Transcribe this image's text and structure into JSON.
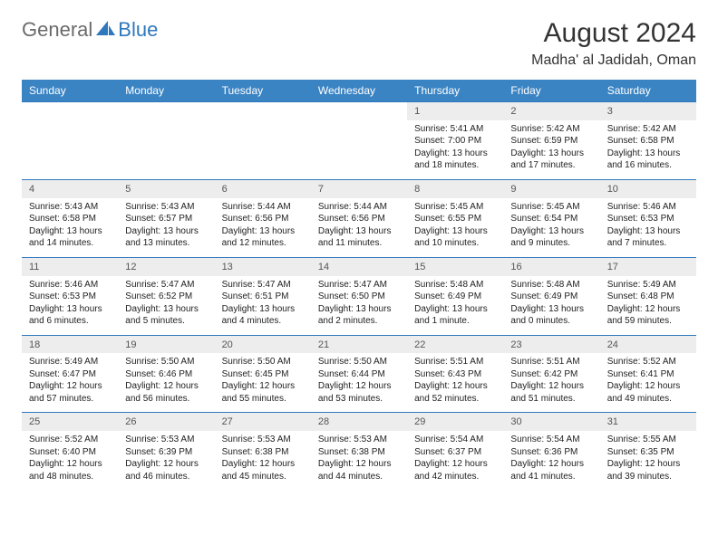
{
  "logo": {
    "part1": "General",
    "part2": "Blue"
  },
  "title": "August 2024",
  "location": "Madha' al Jadidah, Oman",
  "colors": {
    "header_bg": "#3b84c4",
    "header_text": "#ffffff",
    "daynum_bg": "#ededed",
    "row_border": "#2f78bd",
    "logo_gray": "#6b6b6b",
    "logo_blue": "#2f78bd"
  },
  "weekdays": [
    "Sunday",
    "Monday",
    "Tuesday",
    "Wednesday",
    "Thursday",
    "Friday",
    "Saturday"
  ],
  "weeks": [
    [
      null,
      null,
      null,
      null,
      {
        "n": "1",
        "sr": "Sunrise: 5:41 AM",
        "ss": "Sunset: 7:00 PM",
        "d1": "Daylight: 13 hours",
        "d2": "and 18 minutes."
      },
      {
        "n": "2",
        "sr": "Sunrise: 5:42 AM",
        "ss": "Sunset: 6:59 PM",
        "d1": "Daylight: 13 hours",
        "d2": "and 17 minutes."
      },
      {
        "n": "3",
        "sr": "Sunrise: 5:42 AM",
        "ss": "Sunset: 6:58 PM",
        "d1": "Daylight: 13 hours",
        "d2": "and 16 minutes."
      }
    ],
    [
      {
        "n": "4",
        "sr": "Sunrise: 5:43 AM",
        "ss": "Sunset: 6:58 PM",
        "d1": "Daylight: 13 hours",
        "d2": "and 14 minutes."
      },
      {
        "n": "5",
        "sr": "Sunrise: 5:43 AM",
        "ss": "Sunset: 6:57 PM",
        "d1": "Daylight: 13 hours",
        "d2": "and 13 minutes."
      },
      {
        "n": "6",
        "sr": "Sunrise: 5:44 AM",
        "ss": "Sunset: 6:56 PM",
        "d1": "Daylight: 13 hours",
        "d2": "and 12 minutes."
      },
      {
        "n": "7",
        "sr": "Sunrise: 5:44 AM",
        "ss": "Sunset: 6:56 PM",
        "d1": "Daylight: 13 hours",
        "d2": "and 11 minutes."
      },
      {
        "n": "8",
        "sr": "Sunrise: 5:45 AM",
        "ss": "Sunset: 6:55 PM",
        "d1": "Daylight: 13 hours",
        "d2": "and 10 minutes."
      },
      {
        "n": "9",
        "sr": "Sunrise: 5:45 AM",
        "ss": "Sunset: 6:54 PM",
        "d1": "Daylight: 13 hours",
        "d2": "and 9 minutes."
      },
      {
        "n": "10",
        "sr": "Sunrise: 5:46 AM",
        "ss": "Sunset: 6:53 PM",
        "d1": "Daylight: 13 hours",
        "d2": "and 7 minutes."
      }
    ],
    [
      {
        "n": "11",
        "sr": "Sunrise: 5:46 AM",
        "ss": "Sunset: 6:53 PM",
        "d1": "Daylight: 13 hours",
        "d2": "and 6 minutes."
      },
      {
        "n": "12",
        "sr": "Sunrise: 5:47 AM",
        "ss": "Sunset: 6:52 PM",
        "d1": "Daylight: 13 hours",
        "d2": "and 5 minutes."
      },
      {
        "n": "13",
        "sr": "Sunrise: 5:47 AM",
        "ss": "Sunset: 6:51 PM",
        "d1": "Daylight: 13 hours",
        "d2": "and 4 minutes."
      },
      {
        "n": "14",
        "sr": "Sunrise: 5:47 AM",
        "ss": "Sunset: 6:50 PM",
        "d1": "Daylight: 13 hours",
        "d2": "and 2 minutes."
      },
      {
        "n": "15",
        "sr": "Sunrise: 5:48 AM",
        "ss": "Sunset: 6:49 PM",
        "d1": "Daylight: 13 hours",
        "d2": "and 1 minute."
      },
      {
        "n": "16",
        "sr": "Sunrise: 5:48 AM",
        "ss": "Sunset: 6:49 PM",
        "d1": "Daylight: 13 hours",
        "d2": "and 0 minutes."
      },
      {
        "n": "17",
        "sr": "Sunrise: 5:49 AM",
        "ss": "Sunset: 6:48 PM",
        "d1": "Daylight: 12 hours",
        "d2": "and 59 minutes."
      }
    ],
    [
      {
        "n": "18",
        "sr": "Sunrise: 5:49 AM",
        "ss": "Sunset: 6:47 PM",
        "d1": "Daylight: 12 hours",
        "d2": "and 57 minutes."
      },
      {
        "n": "19",
        "sr": "Sunrise: 5:50 AM",
        "ss": "Sunset: 6:46 PM",
        "d1": "Daylight: 12 hours",
        "d2": "and 56 minutes."
      },
      {
        "n": "20",
        "sr": "Sunrise: 5:50 AM",
        "ss": "Sunset: 6:45 PM",
        "d1": "Daylight: 12 hours",
        "d2": "and 55 minutes."
      },
      {
        "n": "21",
        "sr": "Sunrise: 5:50 AM",
        "ss": "Sunset: 6:44 PM",
        "d1": "Daylight: 12 hours",
        "d2": "and 53 minutes."
      },
      {
        "n": "22",
        "sr": "Sunrise: 5:51 AM",
        "ss": "Sunset: 6:43 PM",
        "d1": "Daylight: 12 hours",
        "d2": "and 52 minutes."
      },
      {
        "n": "23",
        "sr": "Sunrise: 5:51 AM",
        "ss": "Sunset: 6:42 PM",
        "d1": "Daylight: 12 hours",
        "d2": "and 51 minutes."
      },
      {
        "n": "24",
        "sr": "Sunrise: 5:52 AM",
        "ss": "Sunset: 6:41 PM",
        "d1": "Daylight: 12 hours",
        "d2": "and 49 minutes."
      }
    ],
    [
      {
        "n": "25",
        "sr": "Sunrise: 5:52 AM",
        "ss": "Sunset: 6:40 PM",
        "d1": "Daylight: 12 hours",
        "d2": "and 48 minutes."
      },
      {
        "n": "26",
        "sr": "Sunrise: 5:53 AM",
        "ss": "Sunset: 6:39 PM",
        "d1": "Daylight: 12 hours",
        "d2": "and 46 minutes."
      },
      {
        "n": "27",
        "sr": "Sunrise: 5:53 AM",
        "ss": "Sunset: 6:38 PM",
        "d1": "Daylight: 12 hours",
        "d2": "and 45 minutes."
      },
      {
        "n": "28",
        "sr": "Sunrise: 5:53 AM",
        "ss": "Sunset: 6:38 PM",
        "d1": "Daylight: 12 hours",
        "d2": "and 44 minutes."
      },
      {
        "n": "29",
        "sr": "Sunrise: 5:54 AM",
        "ss": "Sunset: 6:37 PM",
        "d1": "Daylight: 12 hours",
        "d2": "and 42 minutes."
      },
      {
        "n": "30",
        "sr": "Sunrise: 5:54 AM",
        "ss": "Sunset: 6:36 PM",
        "d1": "Daylight: 12 hours",
        "d2": "and 41 minutes."
      },
      {
        "n": "31",
        "sr": "Sunrise: 5:55 AM",
        "ss": "Sunset: 6:35 PM",
        "d1": "Daylight: 12 hours",
        "d2": "and 39 minutes."
      }
    ]
  ]
}
